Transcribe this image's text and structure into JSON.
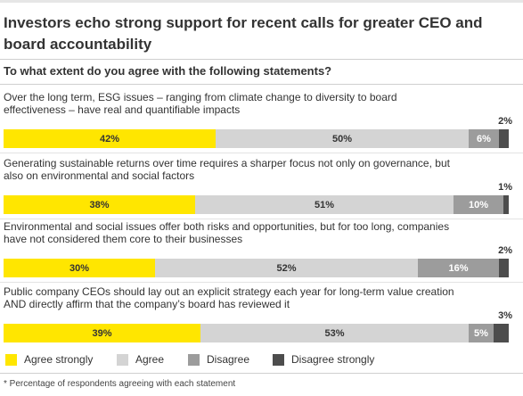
{
  "title": "Investors echo strong support for recent calls for greater CEO and board accountability",
  "subtitle": "To what extent do you agree with the following statements?",
  "footnote": "* Percentage of respondents agreeing with each statement",
  "colors": {
    "agree_strongly": "#ffe600",
    "agree": "#d4d4d4",
    "disagree": "#9c9c9c",
    "disagree_strongly": "#4d4d4d"
  },
  "legend": [
    {
      "label": "Agree strongly",
      "color": "#ffe600"
    },
    {
      "label": "Agree",
      "color": "#d4d4d4"
    },
    {
      "label": "Disagree",
      "color": "#9c9c9c"
    },
    {
      "label": "Disagree strongly",
      "color": "#4d4d4d"
    }
  ],
  "chart_data": {
    "type": "bar",
    "stacked": true,
    "orientation": "horizontal",
    "categories": [
      "Over the long term, ESG issues – ranging from climate change to diversity to board effectiveness – have real and quantifiable impacts",
      "Generating sustainable returns over time requires a sharper focus not only on governance, but also on environmental and social factors",
      "Environmental and social issues offer both risks and opportunities, but for too long, companies have not considered them core to their businesses",
      "Public company CEOs should lay out an explicit strategy each year for long-term value creation AND directly affirm that the company’s board has reviewed it"
    ],
    "series": [
      {
        "name": "Agree strongly",
        "values": [
          42,
          38,
          30,
          39
        ]
      },
      {
        "name": "Agree",
        "values": [
          50,
          51,
          52,
          53
        ]
      },
      {
        "name": "Disagree",
        "values": [
          6,
          10,
          16,
          5
        ]
      },
      {
        "name": "Disagree strongly",
        "values": [
          2,
          1,
          2,
          3
        ]
      }
    ],
    "value_labels": [
      [
        "42%",
        "50%",
        "6%",
        "2%"
      ],
      [
        "38%",
        "51%",
        "10%",
        "1%"
      ],
      [
        "30%",
        "52%",
        "16%",
        "2%"
      ],
      [
        "39%",
        "53%",
        "5%",
        "3%"
      ]
    ],
    "unit": "%",
    "legend_position": "bottom"
  }
}
